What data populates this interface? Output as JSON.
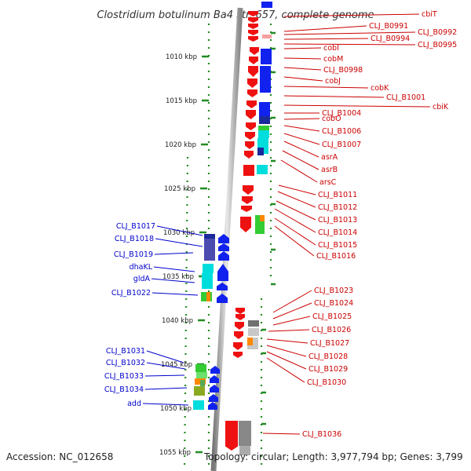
{
  "title": "Clostridium botulinum Ba4 str. 657, complete genome",
  "footer": {
    "accession": "Accession: NC_012658",
    "summary": "Topology: circular; Length: 3,977,794 bp; Genes: 3,799"
  },
  "scale": [
    {
      "label": "1010 kbp"
    },
    {
      "label": "1015 kbp"
    },
    {
      "label": "1020 kbp"
    },
    {
      "label": "1025 kbp"
    },
    {
      "label": "1030 kbp"
    },
    {
      "label": "1035 kbp"
    },
    {
      "label": "1040 kbp"
    },
    {
      "label": "1045 kbp"
    },
    {
      "label": "1050 kbp"
    },
    {
      "label": "1055 kbp"
    }
  ],
  "right_labels": [
    "cbiT",
    "CLJ_B0991",
    "CLJ_B0992",
    "CLJ_B0994",
    "CLJ_B0995",
    "cobI",
    "cobM",
    "CLJ_B0998",
    "cobJ",
    "cobK",
    "CLJ_B1001",
    "cbiK",
    "CLJ_B1004",
    "cobO",
    "CLJ_B1006",
    "CLJ_B1007",
    "asrA",
    "asrB",
    "arsC",
    "CLJ_B1011",
    "CLJ_B1012",
    "CLJ_B1013",
    "CLJ_B1014",
    "CLJ_B1015",
    "CLJ_B1016",
    "CLJ_B1023",
    "CLJ_B1024",
    "CLJ_B1025",
    "CLJ_B1026",
    "CLJ_B1027",
    "CLJ_B1028",
    "CLJ_B1029",
    "CLJ_B1030",
    "CLJ_B1036"
  ],
  "left_labels": [
    "CLJ_B1017",
    "CLJ_B1018",
    "CLJ_B1019",
    "dhaKL",
    "gldA",
    "CLJ_B1022",
    "CLJ_B1031",
    "CLJ_B1032",
    "CLJ_B1033",
    "CLJ_B1034",
    "add"
  ],
  "colors": {
    "label_right": "#cc0000",
    "label_left": "#0000cc",
    "gene_red": "#ee1111",
    "gene_blue": "#1122ee",
    "navy": "#1a2a9a",
    "cyan": "#00dddd",
    "green": "#33cc33",
    "orange": "#ff8800",
    "grey": "#808080",
    "backbone": "#999999",
    "tick": "#228b22"
  }
}
